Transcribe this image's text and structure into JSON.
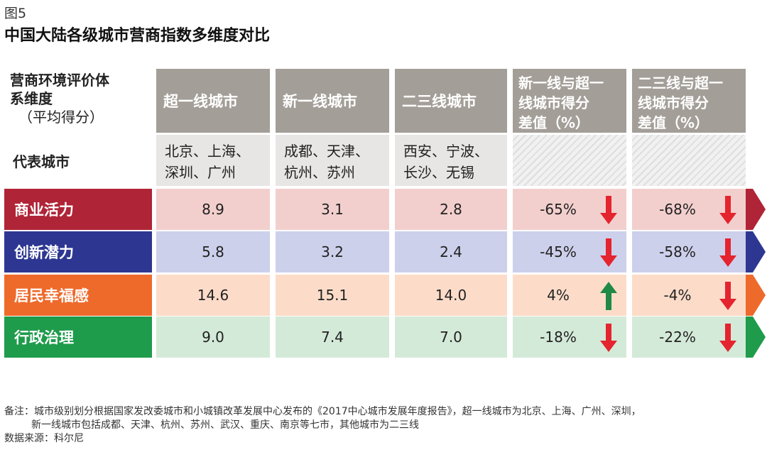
{
  "figure_label": "图5",
  "title": "中国大陆各级城市营商指数多维度对比",
  "header": {
    "dimension_label_l1": "营商环境评价体",
    "dimension_label_l2": "系维度",
    "dimension_label_l3": "（平均得分）",
    "representative_label": "代表城市",
    "columns": [
      {
        "label": "超一线城市",
        "cities_l1": "北京、上海、",
        "cities_l2": "深圳、广州"
      },
      {
        "label": "新一线城市",
        "cities_l1": "成都、天津、",
        "cities_l2": "杭州、苏州"
      },
      {
        "label": "二三线城市",
        "cities_l1": "西安、宁波、",
        "cities_l2": "长沙、无锡"
      },
      {
        "label_l1": "新一线与超一",
        "label_l2": "线城市得分",
        "label_l3": "差值（%）"
      },
      {
        "label_l1": "二三线与超一",
        "label_l2": "线城市得分",
        "label_l3": "差值（%）"
      }
    ]
  },
  "colors": {
    "commerce": "#b02437",
    "commerce_bg": "#f2cfcd",
    "innovation": "#2d3792",
    "innovation_bg": "#cdd0eb",
    "happiness": "#ee6a2b",
    "happiness_bg": "#fcdcc9",
    "governance": "#1f9b4c",
    "governance_bg": "#d3ead8",
    "arrow_down": "#e4242e",
    "arrow_up": "#1f8a45"
  },
  "chart_data": {
    "type": "table",
    "title": "中国大陆各级城市营商指数多维度对比",
    "columns": [
      "超一线城市",
      "新一线城市",
      "二三线城市",
      "新一线与超一线城市得分差值（%）",
      "二三线与超一线城市得分差值（%）"
    ],
    "rows": [
      {
        "name": "商业活力",
        "values": [
          "8.9",
          "3.1",
          "2.8"
        ],
        "diffs": [
          "-65%",
          "-68%"
        ],
        "dirs": [
          "down",
          "down"
        ],
        "color": "commerce"
      },
      {
        "name": "创新潜力",
        "values": [
          "5.8",
          "3.2",
          "2.4"
        ],
        "diffs": [
          "-45%",
          "-58%"
        ],
        "dirs": [
          "down",
          "down"
        ],
        "color": "innovation"
      },
      {
        "name": "居民幸福感",
        "values": [
          "14.6",
          "15.1",
          "14.0"
        ],
        "diffs": [
          "4%",
          "-4%"
        ],
        "dirs": [
          "up",
          "down"
        ],
        "color": "happiness"
      },
      {
        "name": "行政治理",
        "values": [
          "9.0",
          "7.4",
          "7.0"
        ],
        "diffs": [
          "-18%",
          "-22%"
        ],
        "dirs": [
          "down",
          "down"
        ],
        "color": "governance"
      }
    ]
  },
  "notes": {
    "line1": "备注：城市级别划分根据国家发改委城市和小城镇改革发展中心发布的《2017中心城市发展年度报告》，超一线城市为北京、上海、广州、深圳，",
    "line2": "新一线城市包括成都、天津、杭州、苏州、武汉、重庆、南京等七市，其他城市为二三线",
    "line3": "数据来源：科尔尼"
  }
}
